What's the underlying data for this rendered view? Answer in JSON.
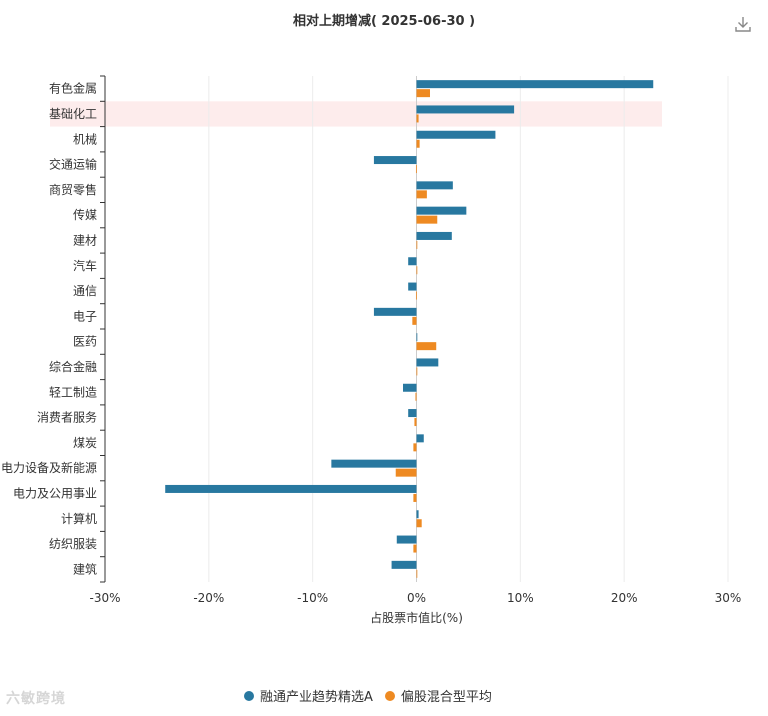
{
  "chart_data": {
    "type": "bar",
    "orientation": "horizontal",
    "title": "相对上期增减( 2025-06-30 )",
    "xlabel": "占股票市值比(%)",
    "xlim": [
      -30,
      30
    ],
    "xticks": [
      -30,
      -20,
      -10,
      0,
      10,
      20,
      30
    ],
    "tick_suffix": "%",
    "grid": true,
    "legend_position": "bottom",
    "highlighted_category": "基础化工",
    "categories": [
      "有色金属",
      "基础化工",
      "机械",
      "交通运输",
      "商贸零售",
      "传媒",
      "建材",
      "汽车",
      "通信",
      "电子",
      "医药",
      "综合金融",
      "轻工制造",
      "消费者服务",
      "煤炭",
      "电力设备及新能源",
      "电力及公用事业",
      "计算机",
      "纺织服装",
      "建筑"
    ],
    "series": [
      {
        "name": "融通产业趋势精选A",
        "color": "#2878a0",
        "values": [
          22.8,
          9.4,
          7.6,
          -4.1,
          3.5,
          4.8,
          3.4,
          -0.8,
          -0.8,
          -4.1,
          0.0,
          2.1,
          -1.3,
          -0.8,
          0.7,
          -8.2,
          -24.2,
          0.2,
          -1.9,
          -2.4
        ]
      },
      {
        "name": "偏股混合型平均",
        "color": "#ee8a22",
        "values": [
          1.3,
          0.2,
          0.3,
          -0.05,
          1.0,
          2.0,
          0.0,
          0.0,
          -0.05,
          -0.4,
          1.9,
          0.0,
          -0.1,
          -0.2,
          -0.3,
          -2.0,
          -0.3,
          0.5,
          -0.3,
          0.0
        ]
      }
    ]
  },
  "toolbar": {
    "download_icon": "download-icon"
  },
  "watermark": {
    "text": "六敏跨境"
  }
}
